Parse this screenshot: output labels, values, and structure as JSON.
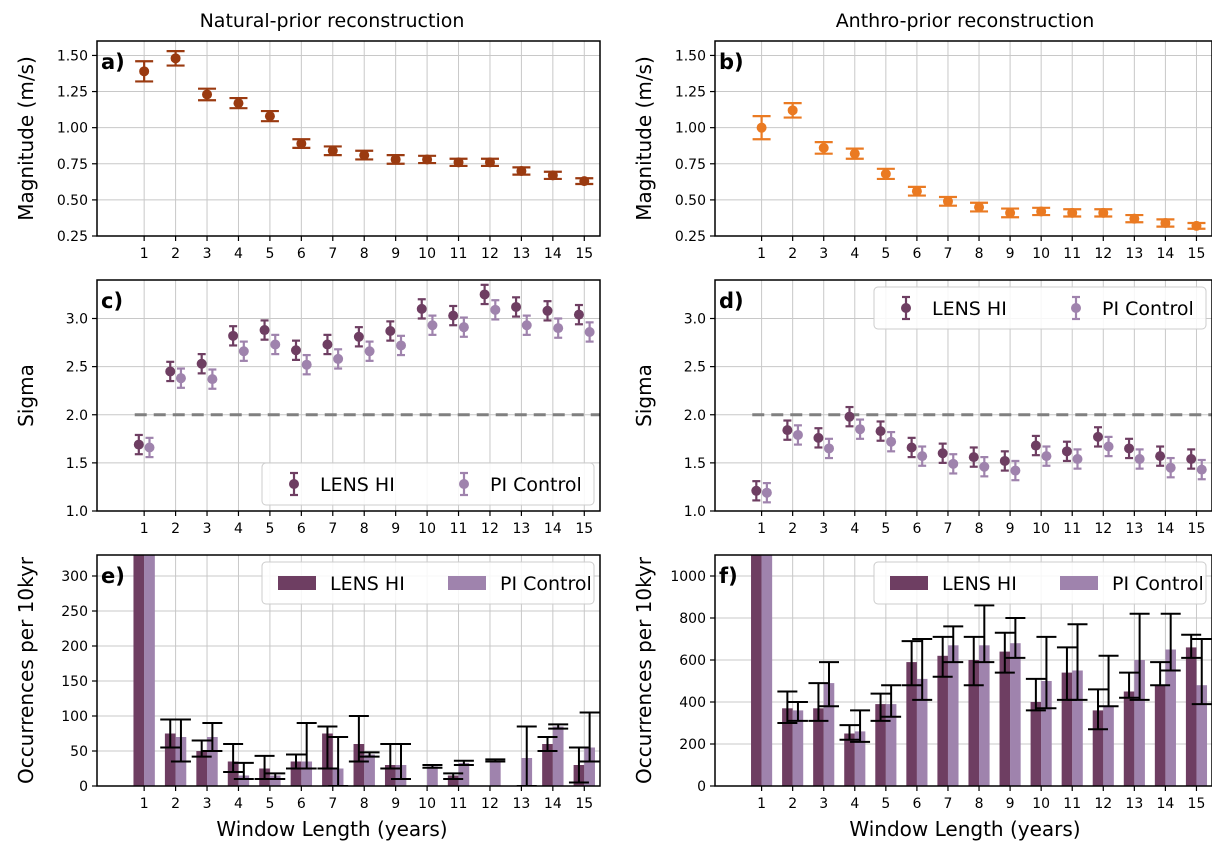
{
  "titles": {
    "left": "Natural-prior reconstruction",
    "right": "Anthro-prior reconstruction"
  },
  "xlabel": "Window Length (years)",
  "legend": {
    "lens": "LENS HI",
    "pi": "PI Control"
  },
  "colors": {
    "natural": "#9a3a10",
    "anthro": "#ea7a22",
    "lens": "#6e3e62",
    "pi": "#9f83ad",
    "errorbar": "#000000",
    "threshold": "#808080",
    "grid": "#c8c8c8"
  },
  "chart_data": [
    {
      "id": "a",
      "panel_label": "a)",
      "type": "scatter",
      "ylabel": "Magnitude (m/s)",
      "ylim": [
        0.25,
        1.6
      ],
      "yticks": [
        "0.25",
        "0.50",
        "0.75",
        "1.00",
        "1.25",
        "1.50"
      ],
      "x": [
        1,
        2,
        3,
        4,
        5,
        6,
        7,
        8,
        9,
        10,
        11,
        12,
        13,
        14,
        15
      ],
      "values": [
        1.39,
        1.48,
        1.23,
        1.17,
        1.08,
        0.89,
        0.84,
        0.81,
        0.78,
        0.78,
        0.76,
        0.76,
        0.7,
        0.67,
        0.63
      ],
      "err": [
        0.07,
        0.05,
        0.04,
        0.035,
        0.035,
        0.03,
        0.03,
        0.03,
        0.03,
        0.025,
        0.025,
        0.025,
        0.025,
        0.025,
        0.02
      ],
      "grid": true
    },
    {
      "id": "b",
      "panel_label": "b)",
      "type": "scatter",
      "ylabel": "Magnitude (m/s)",
      "ylim": [
        0.25,
        1.6
      ],
      "yticks": [
        "0.25",
        "0.50",
        "0.75",
        "1.00",
        "1.25",
        "1.50"
      ],
      "x": [
        1,
        2,
        3,
        4,
        5,
        6,
        7,
        8,
        9,
        10,
        11,
        12,
        13,
        14,
        15
      ],
      "values": [
        1.0,
        1.12,
        0.86,
        0.82,
        0.68,
        0.56,
        0.49,
        0.45,
        0.41,
        0.42,
        0.41,
        0.41,
        0.37,
        0.34,
        0.32
      ],
      "err": [
        0.08,
        0.05,
        0.04,
        0.035,
        0.035,
        0.03,
        0.03,
        0.03,
        0.03,
        0.025,
        0.025,
        0.025,
        0.025,
        0.025,
        0.02
      ],
      "grid": true
    },
    {
      "id": "c",
      "panel_label": "c)",
      "type": "scatter",
      "ylabel": "Sigma",
      "ylim": [
        1.0,
        3.4
      ],
      "threshold": 2.0,
      "yticks": [
        "1.0",
        "1.5",
        "2.0",
        "2.5",
        "3.0"
      ],
      "legend_position": "lower-right",
      "x": [
        1,
        2,
        3,
        4,
        5,
        6,
        7,
        8,
        9,
        10,
        11,
        12,
        13,
        14,
        15
      ],
      "series": [
        {
          "name": "LENS HI",
          "values": [
            1.69,
            2.45,
            2.53,
            2.82,
            2.88,
            2.67,
            2.73,
            2.81,
            2.87,
            3.1,
            3.03,
            3.25,
            3.12,
            3.08,
            3.04
          ],
          "err": [
            0.1,
            0.1,
            0.1,
            0.1,
            0.1,
            0.1,
            0.1,
            0.1,
            0.1,
            0.1,
            0.1,
            0.1,
            0.1,
            0.1,
            0.1
          ]
        },
        {
          "name": "PI Control",
          "values": [
            1.66,
            2.38,
            2.37,
            2.66,
            2.73,
            2.52,
            2.58,
            2.66,
            2.72,
            2.93,
            2.91,
            3.09,
            2.93,
            2.9,
            2.86
          ],
          "err": [
            0.1,
            0.1,
            0.1,
            0.1,
            0.1,
            0.1,
            0.1,
            0.1,
            0.1,
            0.1,
            0.1,
            0.1,
            0.1,
            0.1,
            0.1
          ]
        }
      ],
      "grid": true
    },
    {
      "id": "d",
      "panel_label": "d)",
      "type": "scatter",
      "ylabel": "Sigma",
      "ylim": [
        1.0,
        3.4
      ],
      "threshold": 2.0,
      "yticks": [
        "1.0",
        "1.5",
        "2.0",
        "2.5",
        "3.0"
      ],
      "legend_position": "upper-right",
      "x": [
        1,
        2,
        3,
        4,
        5,
        6,
        7,
        8,
        9,
        10,
        11,
        12,
        13,
        14,
        15
      ],
      "series": [
        {
          "name": "LENS HI",
          "values": [
            1.21,
            1.84,
            1.76,
            1.98,
            1.83,
            1.66,
            1.6,
            1.56,
            1.52,
            1.68,
            1.62,
            1.77,
            1.65,
            1.57,
            1.54
          ],
          "err": [
            0.1,
            0.1,
            0.1,
            0.1,
            0.1,
            0.1,
            0.1,
            0.1,
            0.1,
            0.1,
            0.1,
            0.1,
            0.1,
            0.1,
            0.1
          ]
        },
        {
          "name": "PI Control",
          "values": [
            1.19,
            1.79,
            1.65,
            1.85,
            1.72,
            1.57,
            1.49,
            1.46,
            1.42,
            1.57,
            1.54,
            1.67,
            1.54,
            1.45,
            1.43
          ],
          "err": [
            0.1,
            0.1,
            0.1,
            0.1,
            0.1,
            0.1,
            0.1,
            0.1,
            0.1,
            0.1,
            0.1,
            0.1,
            0.1,
            0.1,
            0.1
          ]
        }
      ],
      "grid": true
    },
    {
      "id": "e",
      "panel_label": "e)",
      "type": "bar",
      "ylabel": "Occurrences per 10kyr",
      "xlabel": "Window Length (years)",
      "ylim": [
        0,
        330
      ],
      "yticks": [
        "0",
        "50",
        "100",
        "150",
        "200",
        "250",
        "300"
      ],
      "legend_position": "upper-right",
      "x": [
        1,
        2,
        3,
        4,
        5,
        6,
        7,
        8,
        9,
        10,
        11,
        12,
        13,
        14,
        15
      ],
      "series": [
        {
          "name": "LENS HI",
          "values": [
            330,
            75,
            50,
            35,
            25,
            35,
            75,
            60,
            30,
            0,
            15,
            0,
            0,
            60,
            30
          ],
          "err_low": [
            0,
            20,
            8,
            15,
            15,
            10,
            50,
            25,
            5,
            0,
            5,
            0,
            0,
            10,
            25
          ],
          "err_high": [
            0,
            20,
            15,
            25,
            18,
            10,
            10,
            40,
            30,
            0,
            3,
            0,
            0,
            10,
            25
          ]
        },
        {
          "name": "PI Control",
          "values": [
            330,
            70,
            70,
            15,
            15,
            35,
            25,
            45,
            30,
            28,
            33,
            35,
            40,
            85,
            55
          ],
          "err_low": [
            0,
            35,
            20,
            5,
            5,
            10,
            25,
            3,
            20,
            2,
            3,
            0,
            40,
            3,
            20
          ],
          "err_high": [
            0,
            25,
            20,
            18,
            3,
            55,
            45,
            3,
            30,
            2,
            3,
            3,
            45,
            3,
            50
          ]
        }
      ],
      "grid": true
    },
    {
      "id": "f",
      "panel_label": "f)",
      "type": "bar",
      "ylabel": "Occurrences per 10kyr",
      "xlabel": "Window Length (years)",
      "ylim": [
        0,
        1100
      ],
      "yticks": [
        "0",
        "200",
        "400",
        "600",
        "800",
        "1000"
      ],
      "legend_position": "upper-right",
      "x": [
        1,
        2,
        3,
        4,
        5,
        6,
        7,
        8,
        9,
        10,
        11,
        12,
        13,
        14,
        15
      ],
      "series": [
        {
          "name": "LENS HI",
          "values": [
            1100,
            370,
            370,
            250,
            390,
            590,
            620,
            600,
            640,
            400,
            540,
            360,
            450,
            480,
            660
          ],
          "err_low": [
            0,
            70,
            60,
            30,
            80,
            110,
            100,
            120,
            100,
            40,
            130,
            90,
            30,
            0,
            50
          ],
          "err_high": [
            0,
            80,
            120,
            40,
            50,
            100,
            90,
            110,
            90,
            110,
            120,
            100,
            90,
            110,
            60
          ]
        },
        {
          "name": "PI Control",
          "values": [
            1100,
            360,
            490,
            260,
            390,
            510,
            670,
            670,
            680,
            500,
            550,
            380,
            600,
            650,
            480
          ],
          "err_low": [
            0,
            50,
            110,
            50,
            60,
            100,
            80,
            80,
            70,
            130,
            140,
            0,
            190,
            100,
            90
          ],
          "err_high": [
            0,
            40,
            100,
            100,
            90,
            190,
            90,
            190,
            120,
            210,
            220,
            240,
            220,
            170,
            220
          ]
        }
      ],
      "grid": true
    }
  ]
}
